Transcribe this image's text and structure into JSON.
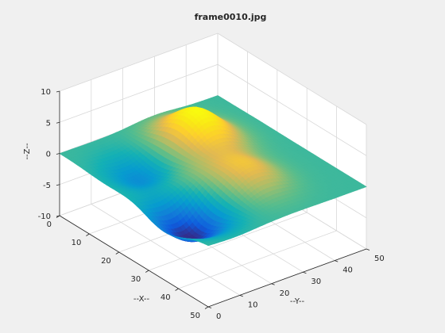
{
  "chart_data": {
    "type": "surface",
    "title": "frame0010.jpg",
    "xlabel": "--X--",
    "ylabel": "--Y--",
    "zlabel": "--Z--",
    "xlim": [
      0,
      50
    ],
    "ylim": [
      0,
      50
    ],
    "zlim": [
      -10,
      10
    ],
    "x_ticks": [
      "0",
      "10",
      "20",
      "30",
      "40",
      "50"
    ],
    "y_ticks": [
      "0",
      "10",
      "20",
      "30",
      "40",
      "50"
    ],
    "z_ticks": [
      "-10",
      "-5",
      "0",
      "5",
      "10"
    ],
    "grid": true,
    "colormap": "parula",
    "features": [
      {
        "x": 35,
        "y": 8,
        "z": -5,
        "note": "minimum (dark blue)"
      },
      {
        "x": 17,
        "y": 12,
        "z": -3,
        "note": "depression (blue)"
      },
      {
        "x": 14,
        "y": 30,
        "z": 5.5,
        "note": "maximum (yellow)"
      },
      {
        "x": 33,
        "y": 27,
        "z": 3,
        "note": "bump (yellow-green)"
      },
      {
        "x": 24,
        "y": 13,
        "z": 2,
        "note": "small bump (green)"
      }
    ]
  }
}
